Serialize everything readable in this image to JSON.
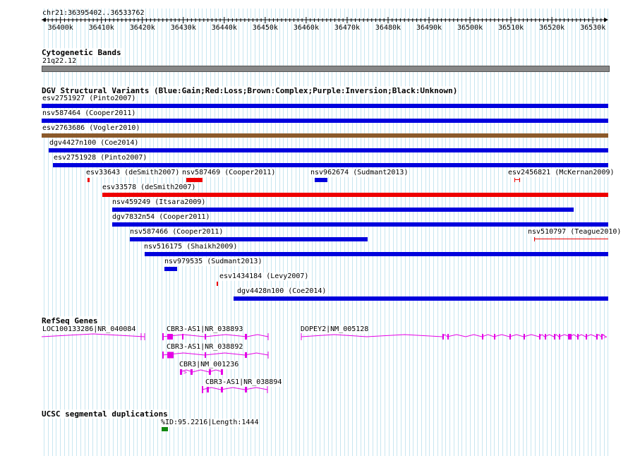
{
  "location": "chr21:36395402..36533762",
  "ruler_ticks": [
    "36400k",
    "36410k",
    "36420k",
    "36430k",
    "36440k",
    "36450k",
    "36460k",
    "36470k",
    "36480k",
    "36490k",
    "36500k",
    "36510k",
    "36520k",
    "36530k"
  ],
  "colors": {
    "grid": "#c8e6f0",
    "gain": "#0000dd",
    "loss": "#ee0000",
    "complex": "#8b5a2b",
    "inversion": "#9900cc",
    "unknown": "#000000",
    "gene": "#e600e6",
    "segdup": "#118811",
    "cytoband": "#888888"
  },
  "tracks": {
    "cytoband": {
      "title": "Cytogenetic Bands",
      "band": "21q22.12"
    },
    "dgv": {
      "title": "DGV Structural Variants (Blue:Gain;Red:Loss;Brown:Complex;Purple:Inversion;Black:Unknown)",
      "variants": [
        {
          "label": "esv2751927 (Pinto2007)",
          "type": "gain",
          "start": 36395402,
          "end": 36533762
        },
        {
          "label": "nsv587464 (Cooper2011)",
          "type": "gain",
          "start": 36395402,
          "end": 36533762
        },
        {
          "label": "esv2763686 (Vogler2010)",
          "type": "complex",
          "start": 36395402,
          "end": 36533762
        },
        {
          "label": "dgv4427n100 (Coe2014)",
          "type": "gain",
          "start": 36397200,
          "end": 36533762
        },
        {
          "label": "esv2751928 (Pinto2007)",
          "type": "gain",
          "start": 36398100,
          "end": 36533762
        },
        {
          "label": "esv33643 (deSmith2007)",
          "type": "loss",
          "start": 36406600,
          "end": 36407200
        },
        {
          "label": "nsv587469 (Cooper2011)",
          "type": "loss",
          "start": 36430800,
          "end": 36434800
        },
        {
          "label": "nsv962674 (Sudmant2013)",
          "type": "gain",
          "start": 36462100,
          "end": 36465200
        },
        {
          "label": "esv2456821 (McKernan2009)",
          "type": "loss",
          "start": 36510900,
          "end": 36512300
        },
        {
          "label": "esv33578 (deSmith2007)",
          "type": "loss",
          "start": 36410300,
          "end": 36533762
        },
        {
          "label": "nsv459249 (Itsara2009)",
          "type": "gain",
          "start": 36412600,
          "end": 36525300
        },
        {
          "label": "dgv7832n54 (Cooper2011)",
          "type": "gain",
          "start": 36412600,
          "end": 36533762
        },
        {
          "label": "nsv587466 (Cooper2011)",
          "type": "gain",
          "start": 36416900,
          "end": 36474900
        },
        {
          "label": "nsv510797 (Teague2010)",
          "type": "loss",
          "start": 36515600,
          "end": 36533762
        },
        {
          "label": "nsv516175 (Shaikh2009)",
          "type": "gain",
          "start": 36420500,
          "end": 36533762
        },
        {
          "label": "nsv979535 (Sudmant2013)",
          "type": "gain",
          "start": 36425400,
          "end": 36428500
        },
        {
          "label": "esv1434184 (Levy2007)",
          "type": "loss",
          "start": 36438100,
          "end": 36438300
        },
        {
          "label": "dgv4428n100 (Coe2014)",
          "type": "gain",
          "start": 36442300,
          "end": 36533762
        }
      ]
    },
    "refseq": {
      "title": "RefSeq Genes",
      "genes": [
        {
          "label": "LOC100133286|NR_040084"
        },
        {
          "label": "CBR3-AS1|NR_038893"
        },
        {
          "label": "DOPEY2|NM_005128"
        },
        {
          "label": "CBR3-AS1|NR_038892"
        },
        {
          "label": "CBR3|NM_001236"
        },
        {
          "label": "CBR3-AS1|NR_038894"
        }
      ]
    },
    "segdup": {
      "title": "UCSC segmental duplications",
      "features": [
        {
          "label": "%ID:95.2216|Length:1444",
          "start": 36424700,
          "end": 36426200
        }
      ]
    }
  }
}
